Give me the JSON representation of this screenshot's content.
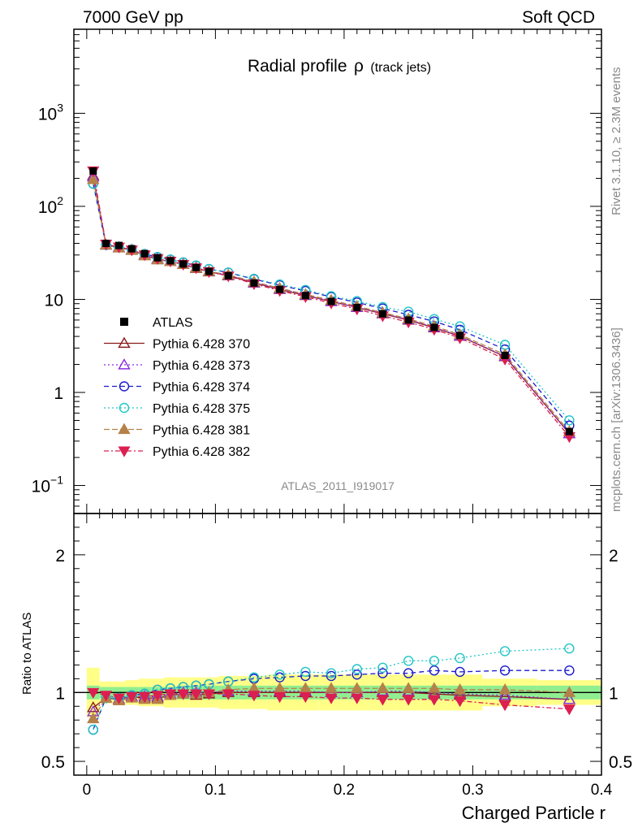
{
  "header": {
    "left": "7000 GeV pp",
    "right": "Soft QCD"
  },
  "side": {
    "rivet": "Rivet 3.1.10, ≥ 2.3M events",
    "mcplots": "mcplots.cern.ch [arXiv:1306.3436]"
  },
  "chart_data": {
    "type": "line",
    "title_main": "Radial profile",
    "title_rho": "ρ",
    "title_sub": "(track jets)",
    "analysis_label": "ATLAS_2011_I919017",
    "xlabel": "Charged Particle r",
    "ratio_ylabel": "Ratio to ATLAS",
    "xlim": [
      -0.01,
      0.4
    ],
    "ylim": [
      0.05,
      8000
    ],
    "ylog": true,
    "ratio_ylim": [
      0.4,
      2.3
    ],
    "x_ticks": [
      "0",
      "0.1",
      "0.2",
      "0.3",
      "0.4"
    ],
    "y_ticks": [
      {
        "base": "10",
        "exp": "−1",
        "value": 0.1
      },
      {
        "base": "1",
        "exp": "",
        "value": 1
      },
      {
        "base": "10",
        "exp": "",
        "value": 10
      },
      {
        "base": "10",
        "exp": "2",
        "value": 100
      },
      {
        "base": "10",
        "exp": "3",
        "value": 1000
      }
    ],
    "ratio_ticks": [
      "0.5",
      "1",
      "2"
    ],
    "x": [
      0.005,
      0.015,
      0.025,
      0.035,
      0.045,
      0.055,
      0.065,
      0.075,
      0.085,
      0.095,
      0.11,
      0.13,
      0.15,
      0.17,
      0.19,
      0.21,
      0.23,
      0.25,
      0.27,
      0.29,
      0.325,
      0.375
    ],
    "data": {
      "name": "ATLAS",
      "values": [
        240,
        40,
        38,
        35,
        31,
        28,
        26,
        24,
        22,
        20,
        18,
        15,
        12.8,
        11,
        9.5,
        8.2,
        7,
        6,
        5,
        4.1,
        2.5,
        0.38
      ],
      "band_inner": [
        0.05,
        0.04,
        0.04,
        0.04,
        0.04,
        0.04,
        0.04,
        0.05,
        0.05,
        0.05,
        0.05,
        0.05,
        0.05,
        0.05,
        0.05,
        0.05,
        0.05,
        0.05,
        0.05,
        0.05,
        0.05,
        0.05
      ],
      "band_outer": [
        0.18,
        0.08,
        0.08,
        0.09,
        0.1,
        0.1,
        0.11,
        0.11,
        0.11,
        0.11,
        0.12,
        0.12,
        0.13,
        0.13,
        0.13,
        0.13,
        0.13,
        0.13,
        0.13,
        0.13,
        0.1,
        0.09
      ]
    },
    "series": [
      {
        "name": "Pythia 6.428 370",
        "color": "#8b1a1a",
        "dash": "",
        "marker": "triangle-open",
        "ratio": [
          0.89,
          0.96,
          0.95,
          0.97,
          0.96,
          0.96,
          0.98,
          0.99,
          0.98,
          0.99,
          1.0,
          1.0,
          1.0,
          1.0,
          1.0,
          1.0,
          1.0,
          1.0,
          0.99,
          0.98,
          0.97,
          0.95
        ]
      },
      {
        "name": "Pythia 6.428 373",
        "color": "#8a2be2",
        "dash": "2,3",
        "marker": "triangle-open",
        "ratio": [
          0.86,
          0.96,
          0.95,
          0.97,
          0.97,
          0.97,
          0.99,
          1.0,
          1.0,
          1.0,
          1.01,
          1.01,
          1.01,
          1.01,
          1.0,
          1.0,
          1.01,
          1.01,
          1.0,
          0.99,
          0.98,
          0.95
        ]
      },
      {
        "name": "Pythia 6.428 374",
        "color": "#1a1acd",
        "dash": "6,4",
        "marker": "circle-open",
        "ratio": [
          0.73,
          0.96,
          0.96,
          0.98,
          0.99,
          1.02,
          1.03,
          1.04,
          1.05,
          1.06,
          1.08,
          1.1,
          1.11,
          1.12,
          1.12,
          1.13,
          1.14,
          1.14,
          1.16,
          1.15,
          1.16,
          1.16
        ]
      },
      {
        "name": "Pythia 6.428 375",
        "color": "#20c5c5",
        "dash": "2,3",
        "marker": "circle-open",
        "ratio": [
          0.73,
          0.96,
          0.96,
          0.98,
          0.99,
          1.02,
          1.03,
          1.04,
          1.05,
          1.06,
          1.08,
          1.11,
          1.13,
          1.15,
          1.14,
          1.17,
          1.18,
          1.23,
          1.23,
          1.25,
          1.3,
          1.32
        ]
      },
      {
        "name": "Pythia 6.428 381",
        "color": "#b5814a",
        "dash": "7,3",
        "marker": "triangle-filled",
        "ratio": [
          0.81,
          0.96,
          0.94,
          0.96,
          0.95,
          0.95,
          0.98,
          0.99,
          0.99,
          1.0,
          1.02,
          1.03,
          1.03,
          1.03,
          1.03,
          1.03,
          1.03,
          1.03,
          1.03,
          1.02,
          1.02,
          1.0
        ]
      },
      {
        "name": "Pythia 6.428 382",
        "color": "#dc1e50",
        "dash": "6,3,2,3",
        "marker": "triangle-down-filled",
        "ratio": [
          1.0,
          0.98,
          0.96,
          0.97,
          0.97,
          0.98,
          0.99,
          0.99,
          0.99,
          0.99,
          0.99,
          0.98,
          0.97,
          0.97,
          0.96,
          0.96,
          0.95,
          0.95,
          0.95,
          0.94,
          0.91,
          0.88
        ]
      }
    ]
  }
}
